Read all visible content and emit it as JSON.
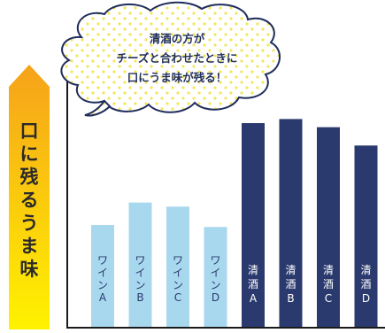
{
  "side_label": "口に残るうま味",
  "callout_lines": [
    "清酒の方が",
    "チーズと合わせたときに",
    "口にうま味が残る！"
  ],
  "colors": {
    "wine": "#a8d8ee",
    "sake": "#2a3a6e",
    "arrow_top": "#f6a21a",
    "arrow_bottom": "#fff200",
    "axis": "#1a1a1a",
    "dots": "#f3e65c",
    "bubble_border": "#1f2d5c"
  },
  "chart_data": {
    "type": "bar",
    "title": "",
    "xlabel": "",
    "ylabel": "口に残るうま味",
    "ylim": [
      0,
      100
    ],
    "grid": false,
    "categories": [
      "ワインA",
      "ワインB",
      "ワインC",
      "ワインD",
      "清酒A",
      "清酒B",
      "清酒C",
      "清酒D"
    ],
    "bar_labels": [
      [
        "ワ",
        "イ",
        "ン",
        "A"
      ],
      [
        "ワ",
        "イ",
        "ン",
        "B"
      ],
      [
        "ワ",
        "イ",
        "ン",
        "C"
      ],
      [
        "ワ",
        "イ",
        "ン",
        "D"
      ],
      [
        "清",
        "酒",
        "A"
      ],
      [
        "清",
        "酒",
        "B"
      ],
      [
        "清",
        "酒",
        "C"
      ],
      [
        "清",
        "酒",
        "D"
      ]
    ],
    "groups": [
      "wine",
      "wine",
      "wine",
      "wine",
      "sake",
      "sake",
      "sake",
      "sake"
    ],
    "values": [
      50,
      61,
      59,
      49,
      100,
      102,
      98,
      89
    ]
  }
}
